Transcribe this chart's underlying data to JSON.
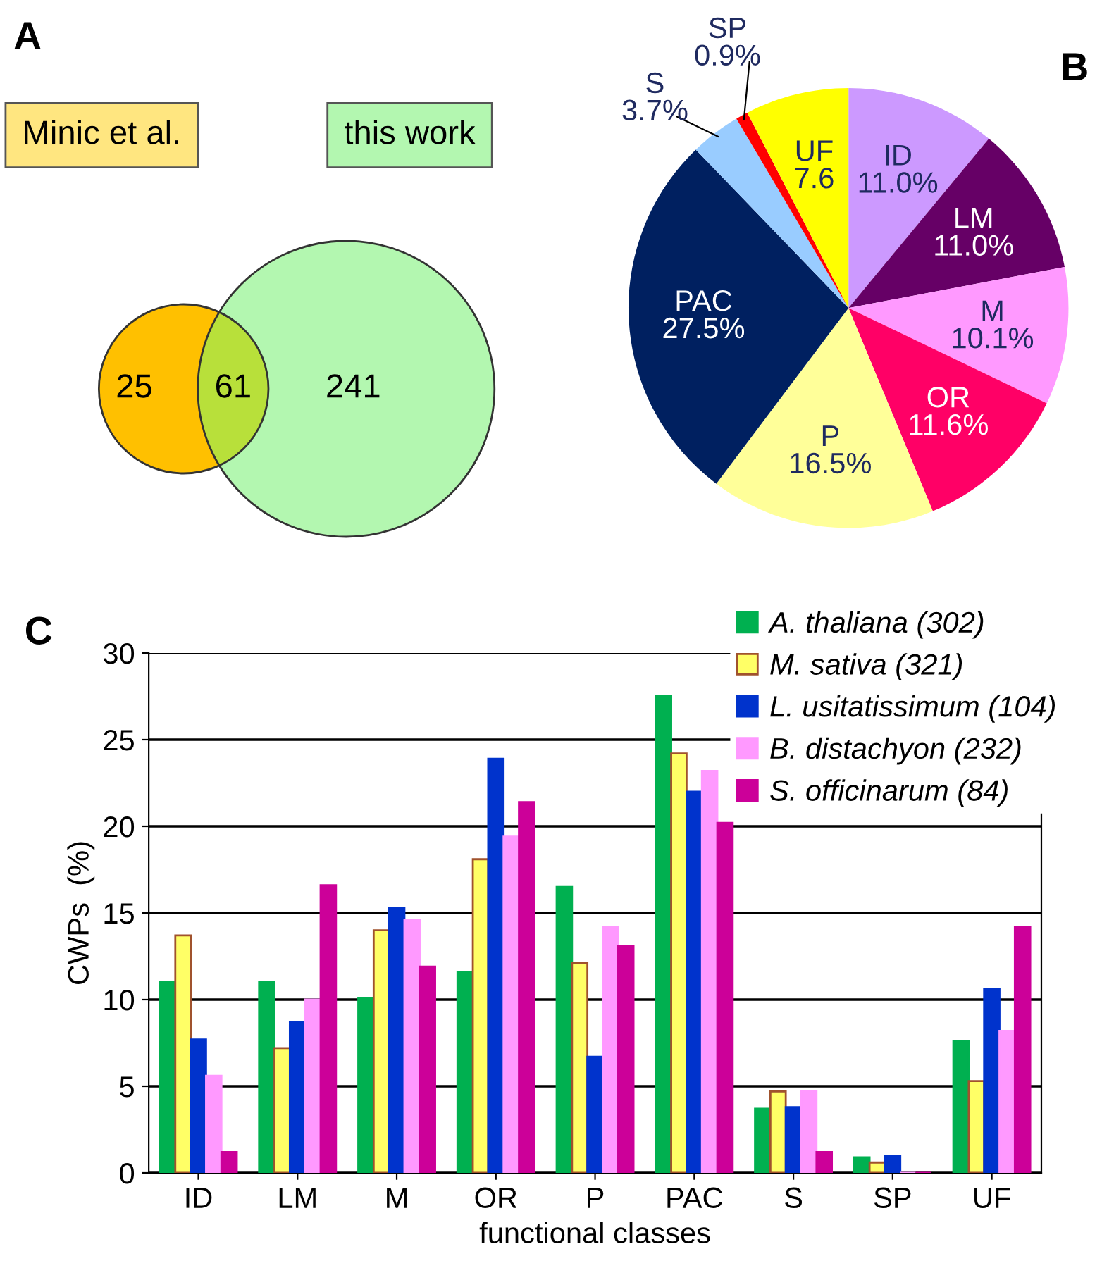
{
  "chart_data": [
    {
      "type": "other",
      "title": "A",
      "categories": [
        null,
        null,
        null
      ],
      "values": [
        25,
        61,
        241
      ],
      "data_labels": true,
      "colors": [
        "#ffc000",
        "#b8e03a",
        "#b3f7b0"
      ],
      "annotations": [
        "Minic et al.",
        "this work"
      ]
    },
    {
      "type": "pie",
      "title": "B",
      "categories": [
        "ID",
        "LM",
        "M",
        "OR",
        "P",
        "PAC",
        "S",
        "SP",
        "UF"
      ],
      "values": [
        11.0,
        11.0,
        10.1,
        11.6,
        16.5,
        27.5,
        3.7,
        0.9,
        7.6
      ],
      "value_labels": [
        "11.0%",
        "11.0%",
        "10.1%",
        "11.6%",
        "16.5%",
        "27.5%",
        "3.7%",
        "0.9%",
        "7.6"
      ],
      "colors": [
        "#cc99ff",
        "#660066",
        "#ff99ff",
        "#ff0066",
        "#ffff99",
        "#002060",
        "#99ccff",
        "#ff0000",
        "#ffff00"
      ]
    },
    {
      "type": "bar",
      "title": "C",
      "xlabel": "functional classes",
      "ylabel": "CWPs  (%)",
      "categories": [
        "ID",
        "LM",
        "M",
        "OR",
        "P",
        "PAC",
        "S",
        "SP",
        "UF"
      ],
      "series": [
        {
          "name": "A. thaliana (302)",
          "color": "#00b050",
          "values": [
            11.0,
            11.0,
            10.1,
            11.6,
            16.5,
            27.5,
            3.7,
            0.9,
            7.6
          ]
        },
        {
          "name": "M. sativa (321)",
          "color": "#ffff66",
          "values": [
            13.7,
            7.2,
            14.0,
            18.1,
            12.1,
            24.2,
            4.7,
            0.6,
            5.3
          ]
        },
        {
          "name": "L. usitatissimum (104)",
          "color": "#0033cc",
          "values": [
            7.7,
            8.7,
            15.3,
            23.9,
            6.7,
            22.0,
            3.8,
            1.0,
            10.6
          ]
        },
        {
          "name": "B. distachyon (232)",
          "color": "#ff99ff",
          "values": [
            5.6,
            10.0,
            14.6,
            19.4,
            14.2,
            23.2,
            4.7,
            0,
            8.2
          ]
        },
        {
          "name": "S. officinarum (84)",
          "color": "#cc0099",
          "values": [
            1.2,
            16.6,
            11.9,
            21.4,
            13.1,
            20.2,
            1.2,
            0,
            14.2
          ]
        }
      ],
      "ylim": [
        0,
        30
      ],
      "yticks": [
        0,
        5,
        10,
        15,
        20,
        25,
        30
      ],
      "grid": "y",
      "legend": "top right"
    }
  ]
}
